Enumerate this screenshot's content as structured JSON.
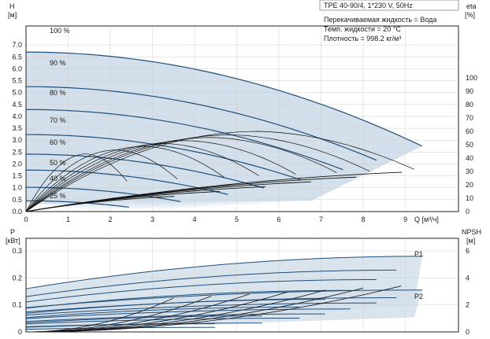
{
  "info": {
    "title": "TPE 40-90/4, 1*230 V, 50Hz",
    "lines": [
      "Перекачиваемая жидкость = Вода",
      "Темп. жидкости = 20 °C",
      "Плотность = 998.2 кг/м³"
    ]
  },
  "colors": {
    "band": "#d3dfea",
    "curve": "#1f4e7a",
    "eff": "#111111",
    "grid": "#cfcfcf",
    "frame": "#222222"
  },
  "chart_data": [
    {
      "type": "line",
      "id": "head",
      "ylabel_unit": "H",
      "ylabel": "[м]",
      "y2label_unit": "eta",
      "y2label": "[%]",
      "xlabel": "Q [м³/ч]",
      "xlim": [
        0,
        10
      ],
      "ylim": [
        0,
        7.5
      ],
      "y2lim": [
        0,
        160
      ],
      "xticks": [
        "0",
        "1",
        "2",
        "3",
        "4",
        "5",
        "6",
        "7",
        "8",
        "9"
      ],
      "yticks": [
        "0.0",
        "0.5",
        "1.0",
        "1.5",
        "2.0",
        "2.5",
        "3.0",
        "3.5",
        "4.0",
        "4.5",
        "5.0",
        "5.5",
        "6.0",
        "6.5",
        "7.0"
      ],
      "y2ticks": [
        "0",
        "10",
        "20",
        "30",
        "40",
        "50",
        "60",
        "70",
        "80",
        "90",
        "100"
      ],
      "series": [
        {
          "name": "100 %",
          "speed": 1.0
        },
        {
          "name": "90 %",
          "speed": 0.885
        },
        {
          "name": "80 %",
          "speed": 0.8
        },
        {
          "name": "70 %",
          "speed": 0.695
        },
        {
          "name": "60 %",
          "speed": 0.6
        },
        {
          "name": "50 %",
          "speed": 0.51
        },
        {
          "name": "40 %",
          "speed": 0.39
        },
        {
          "name": "25 %",
          "speed": 0.26
        }
      ],
      "max_curve": {
        "h0": 6.7,
        "q_end": 9.4,
        "h_end": 2.75
      },
      "eta_peak_percent": 60
    },
    {
      "type": "line",
      "id": "power",
      "ylabel_unit": "P",
      "ylabel": "[кВт]",
      "y2label_unit": "NPSH",
      "y2label": "[м]",
      "xlim": [
        0,
        10
      ],
      "ylim": [
        0,
        0.3
      ],
      "y2lim": [
        0,
        6
      ],
      "yticks": [
        "0",
        "0.1",
        "0.2",
        "0.3"
      ],
      "y2ticks": [
        "0",
        "2",
        "4",
        "6"
      ],
      "series": [
        {
          "name": "P1",
          "p0": 0.16,
          "p_end": 0.28
        },
        {
          "name": "P2",
          "p0": 0.09,
          "p_end": 0.155
        }
      ],
      "npsh_end_m": 3.5
    }
  ]
}
